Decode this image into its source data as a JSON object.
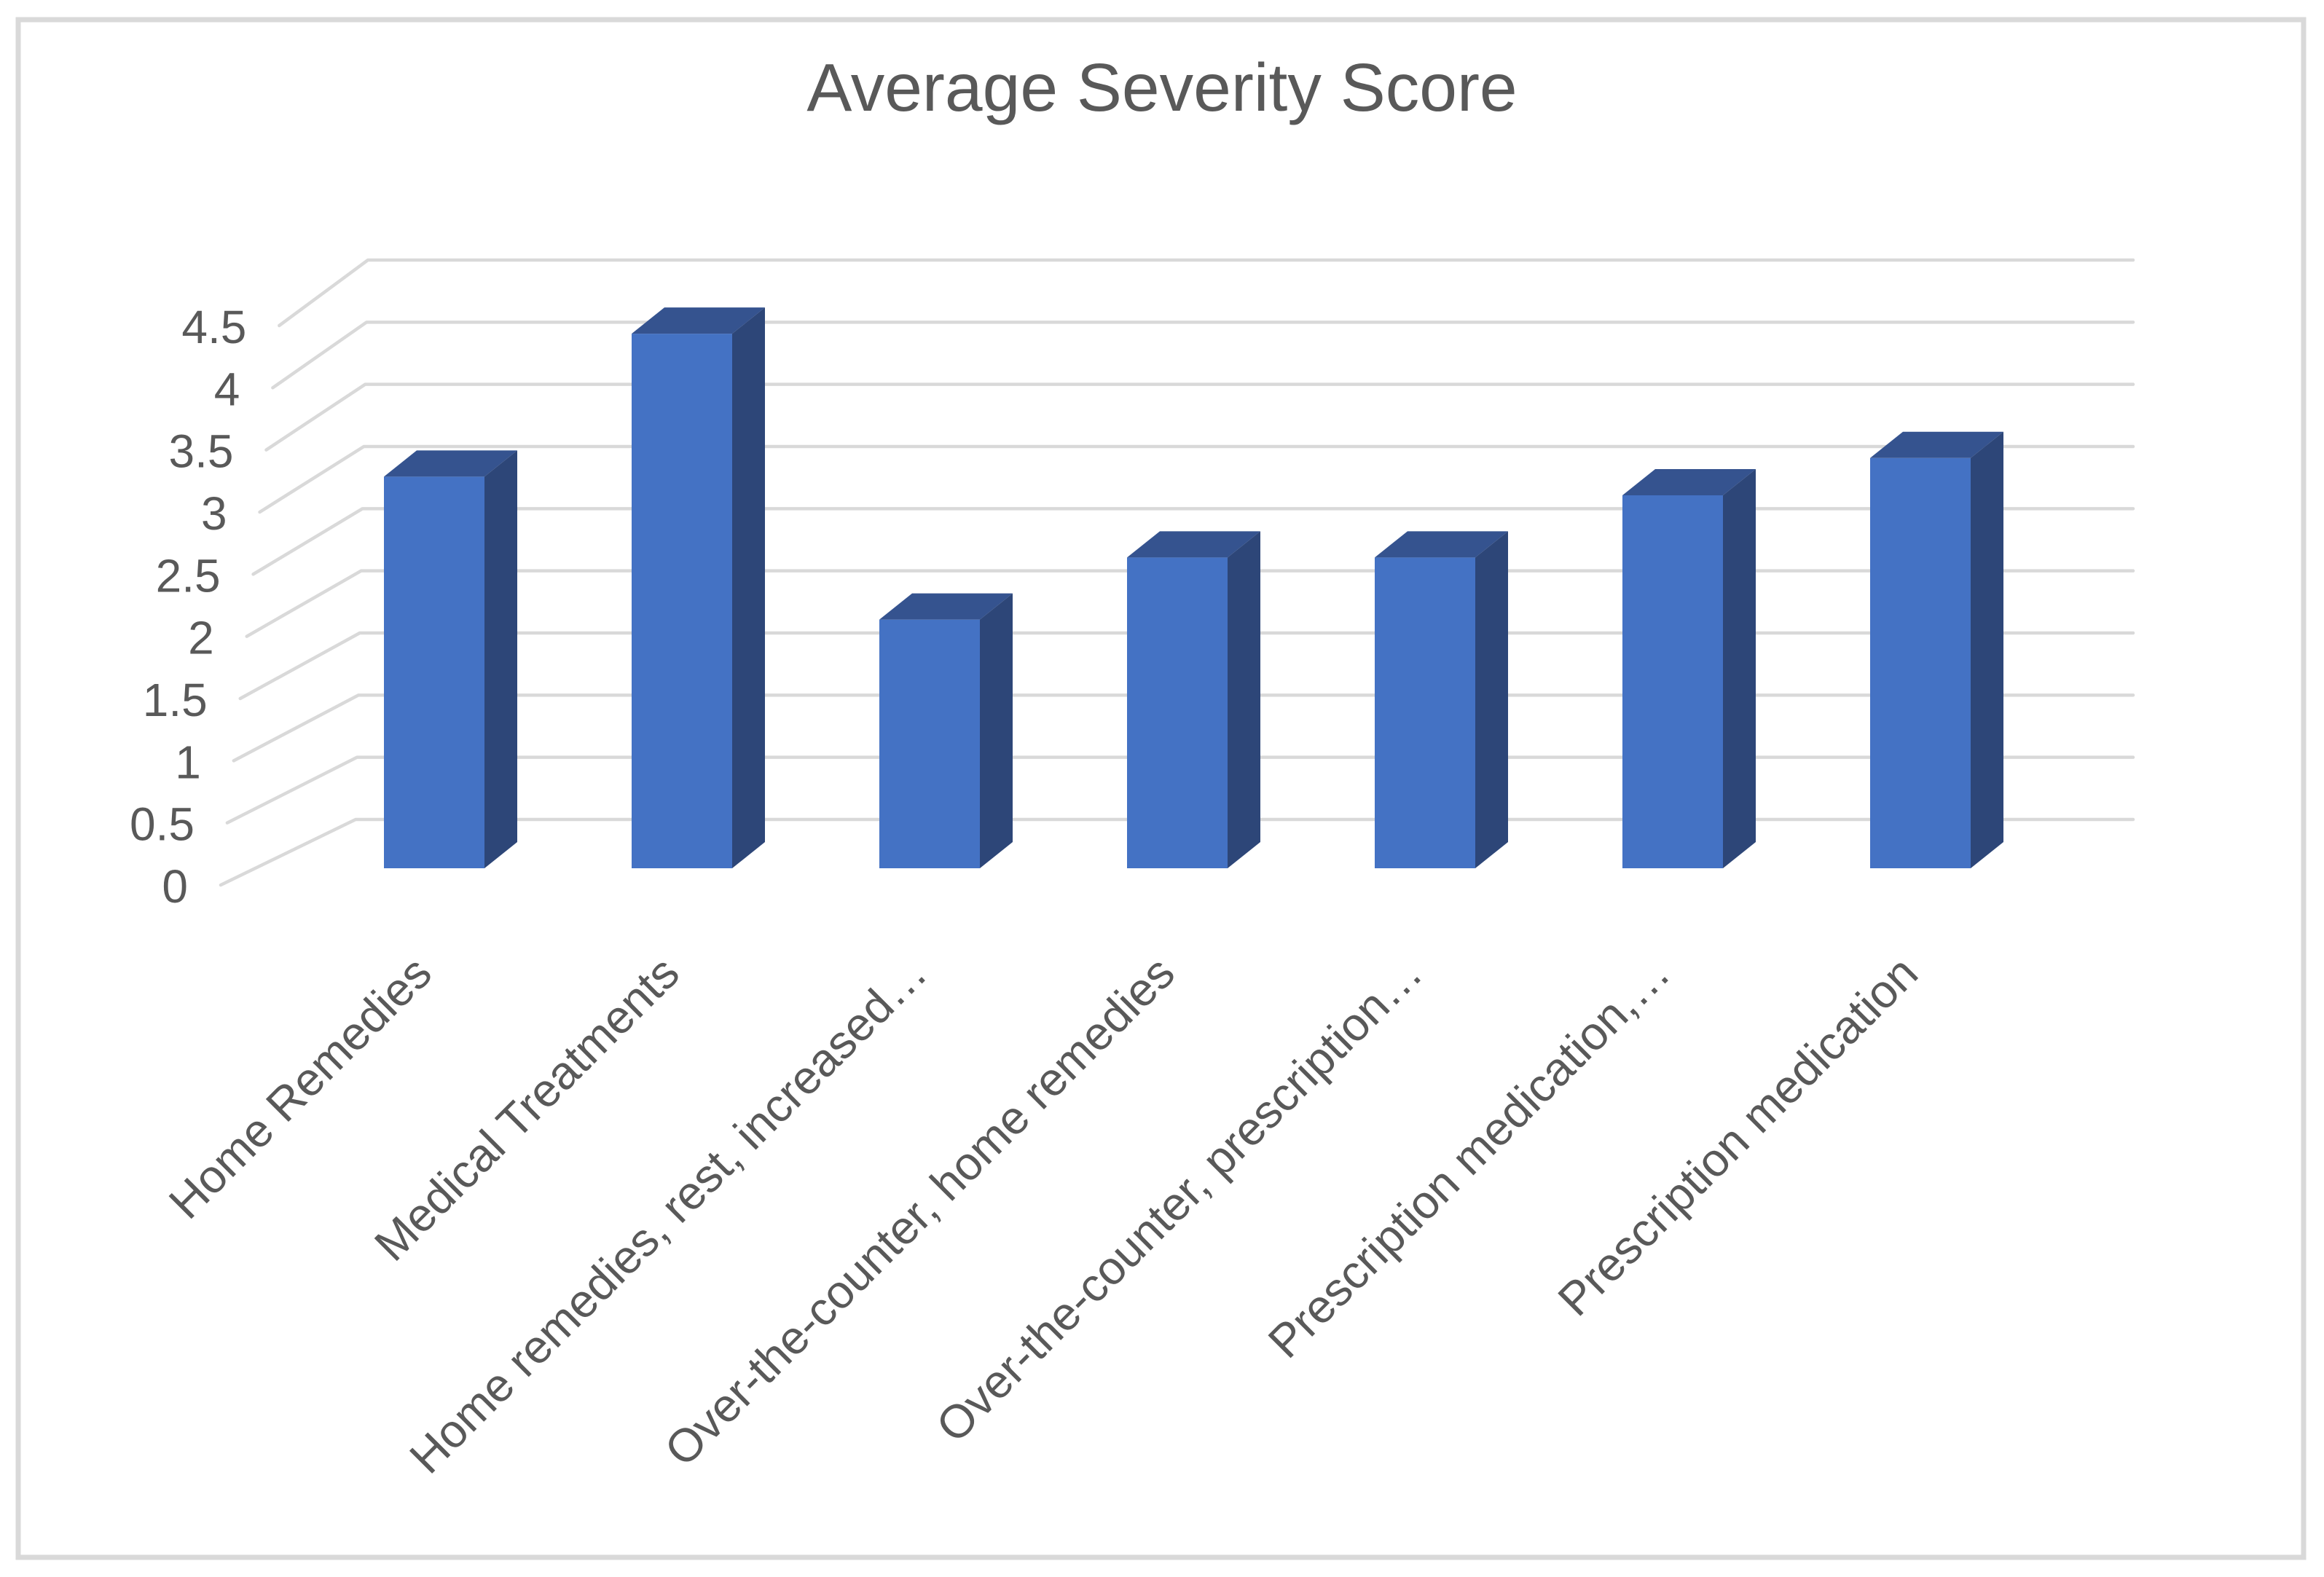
{
  "chart_data": {
    "type": "bar",
    "variant": "3d-column",
    "title": "Average Severity Score",
    "categories": [
      "Home Remedies",
      "Medical Treatments",
      "Home remedies, rest, increased…",
      "Over-the-counter, home remedies",
      "Over-the-counter, prescription…",
      "Prescription medication,…",
      "Prescription medication"
    ],
    "values": [
      3.15,
      4.3,
      2.0,
      2.5,
      2.5,
      3.0,
      3.3
    ],
    "xlabel": "",
    "ylabel": "",
    "ylim": [
      0,
      4.5
    ],
    "ytick_step": 0.5,
    "ytick_labels": [
      "0",
      "0.5",
      "1",
      "1.5",
      "2",
      "2.5",
      "3",
      "3.5",
      "4",
      "4.5"
    ],
    "grid": true,
    "legend_position": "none",
    "colors": {
      "bar_front": "#4472C4",
      "bar_top": "#35538F",
      "bar_side": "#2D4678",
      "gridline": "#D9D9D9",
      "frame_border": "#D9D9D9",
      "text": "#595959",
      "background": "#FFFFFF"
    }
  }
}
